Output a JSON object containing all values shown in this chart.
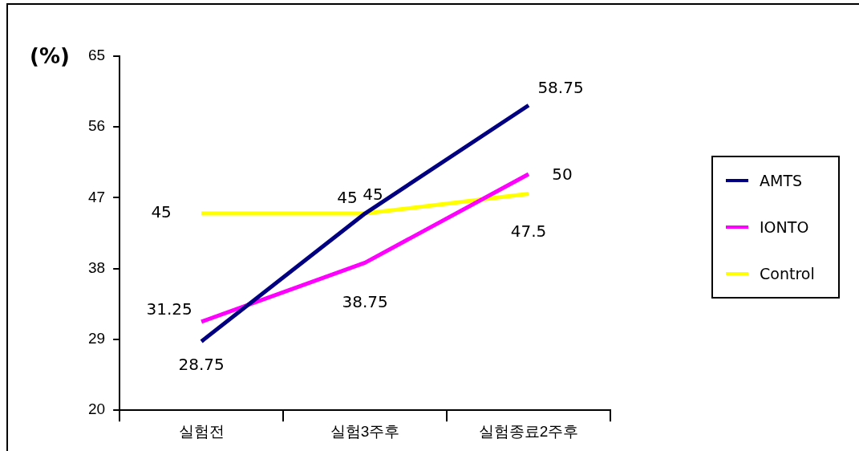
{
  "chart_data": {
    "type": "line",
    "ylabel": "(%)",
    "categories": [
      "실험전",
      "실험3주후",
      "실험종료2주후"
    ],
    "series": [
      {
        "name": "AMTS",
        "color": "#000080",
        "values": [
          28.75,
          45,
          58.75
        ]
      },
      {
        "name": "IONTO",
        "color": "#ff00ff",
        "values": [
          31.25,
          38.75,
          50
        ]
      },
      {
        "name": "Control",
        "color": "#ffff00",
        "values": [
          45,
          45,
          47.5
        ]
      }
    ],
    "ylim": [
      20,
      65
    ],
    "yticks": [
      20,
      29,
      38,
      47,
      56,
      65
    ],
    "grid": false,
    "legend": "right",
    "marker": "none",
    "line_style": "solid",
    "data_labels": true
  }
}
